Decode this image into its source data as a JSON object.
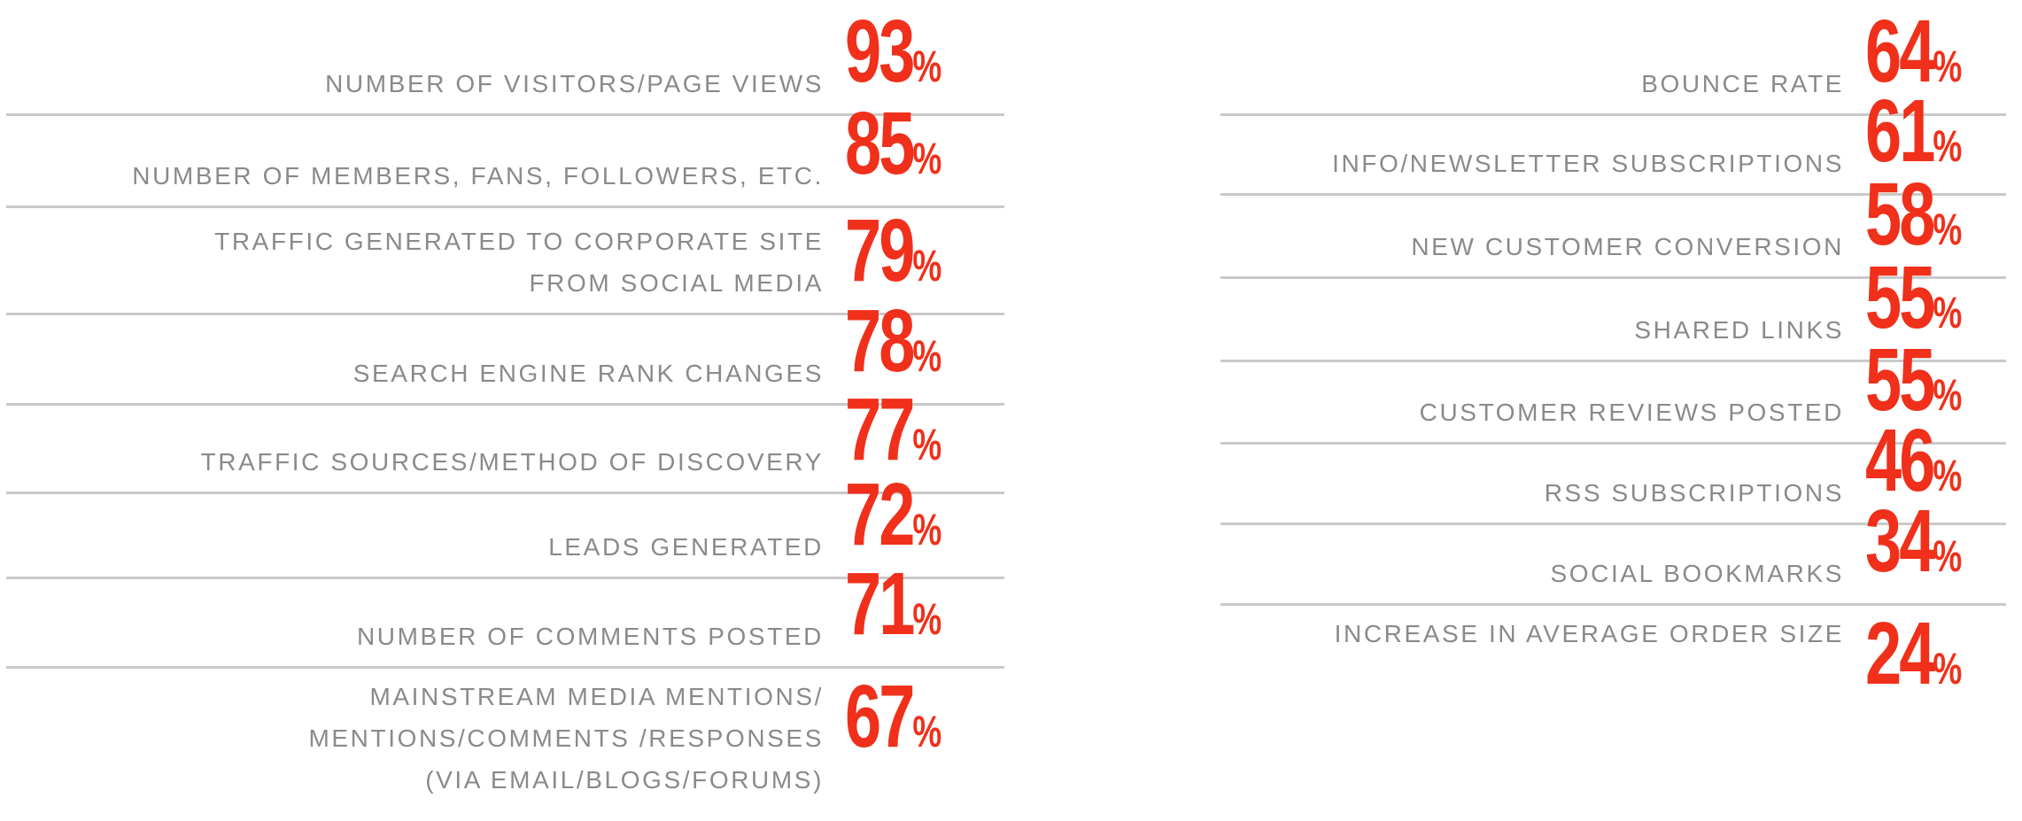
{
  "left_metrics": [
    {
      "label": "NUMBER OF VISITORS/PAGE VIEWS",
      "value": "93",
      "unit": "%"
    },
    {
      "label": "NUMBER OF MEMBERS, FANS, FOLLOWERS, ETC.",
      "value": "85",
      "unit": "%"
    },
    {
      "label": "TRAFFIC GENERATED TO CORPORATE SITE\nFROM SOCIAL MEDIA",
      "value": "79",
      "unit": "%"
    },
    {
      "label": "SEARCH ENGINE RANK CHANGES",
      "value": "78",
      "unit": "%"
    },
    {
      "label": "TRAFFIC SOURCES/METHOD OF DISCOVERY",
      "value": "77",
      "unit": "%"
    },
    {
      "label": "LEADS GENERATED",
      "value": "72",
      "unit": "%"
    },
    {
      "label": "NUMBER OF COMMENTS POSTED",
      "value": "71",
      "unit": "%"
    },
    {
      "label": "MAINSTREAM MEDIA MENTIONS/\nMENTIONS/COMMENTS /RESPONSES\n(VIA EMAIL/BLOGS/FORUMS)",
      "value": "67",
      "unit": "%"
    }
  ],
  "right_metrics": [
    {
      "label": "BOUNCE RATE",
      "value": "64",
      "unit": "%"
    },
    {
      "label": "INFO/NEWSLETTER SUBSCRIPTIONS",
      "value": "61",
      "unit": "%"
    },
    {
      "label": "NEW CUSTOMER CONVERSION",
      "value": "58",
      "unit": "%"
    },
    {
      "label": "SHARED LINKS",
      "value": "55",
      "unit": "%"
    },
    {
      "label": "CUSTOMER REVIEWS POSTED",
      "value": "55",
      "unit": "%"
    },
    {
      "label": "RSS SUBSCRIPTIONS",
      "value": "46",
      "unit": "%"
    },
    {
      "label": "SOCIAL BOOKMARKS",
      "value": "34",
      "unit": "%"
    },
    {
      "label": "INCREASE IN AVERAGE ORDER SIZE",
      "value": "24",
      "unit": "%"
    }
  ],
  "colors": {
    "accent": "#f0301a",
    "label": "#8a8a8a",
    "divider": "#c9c9c9"
  }
}
